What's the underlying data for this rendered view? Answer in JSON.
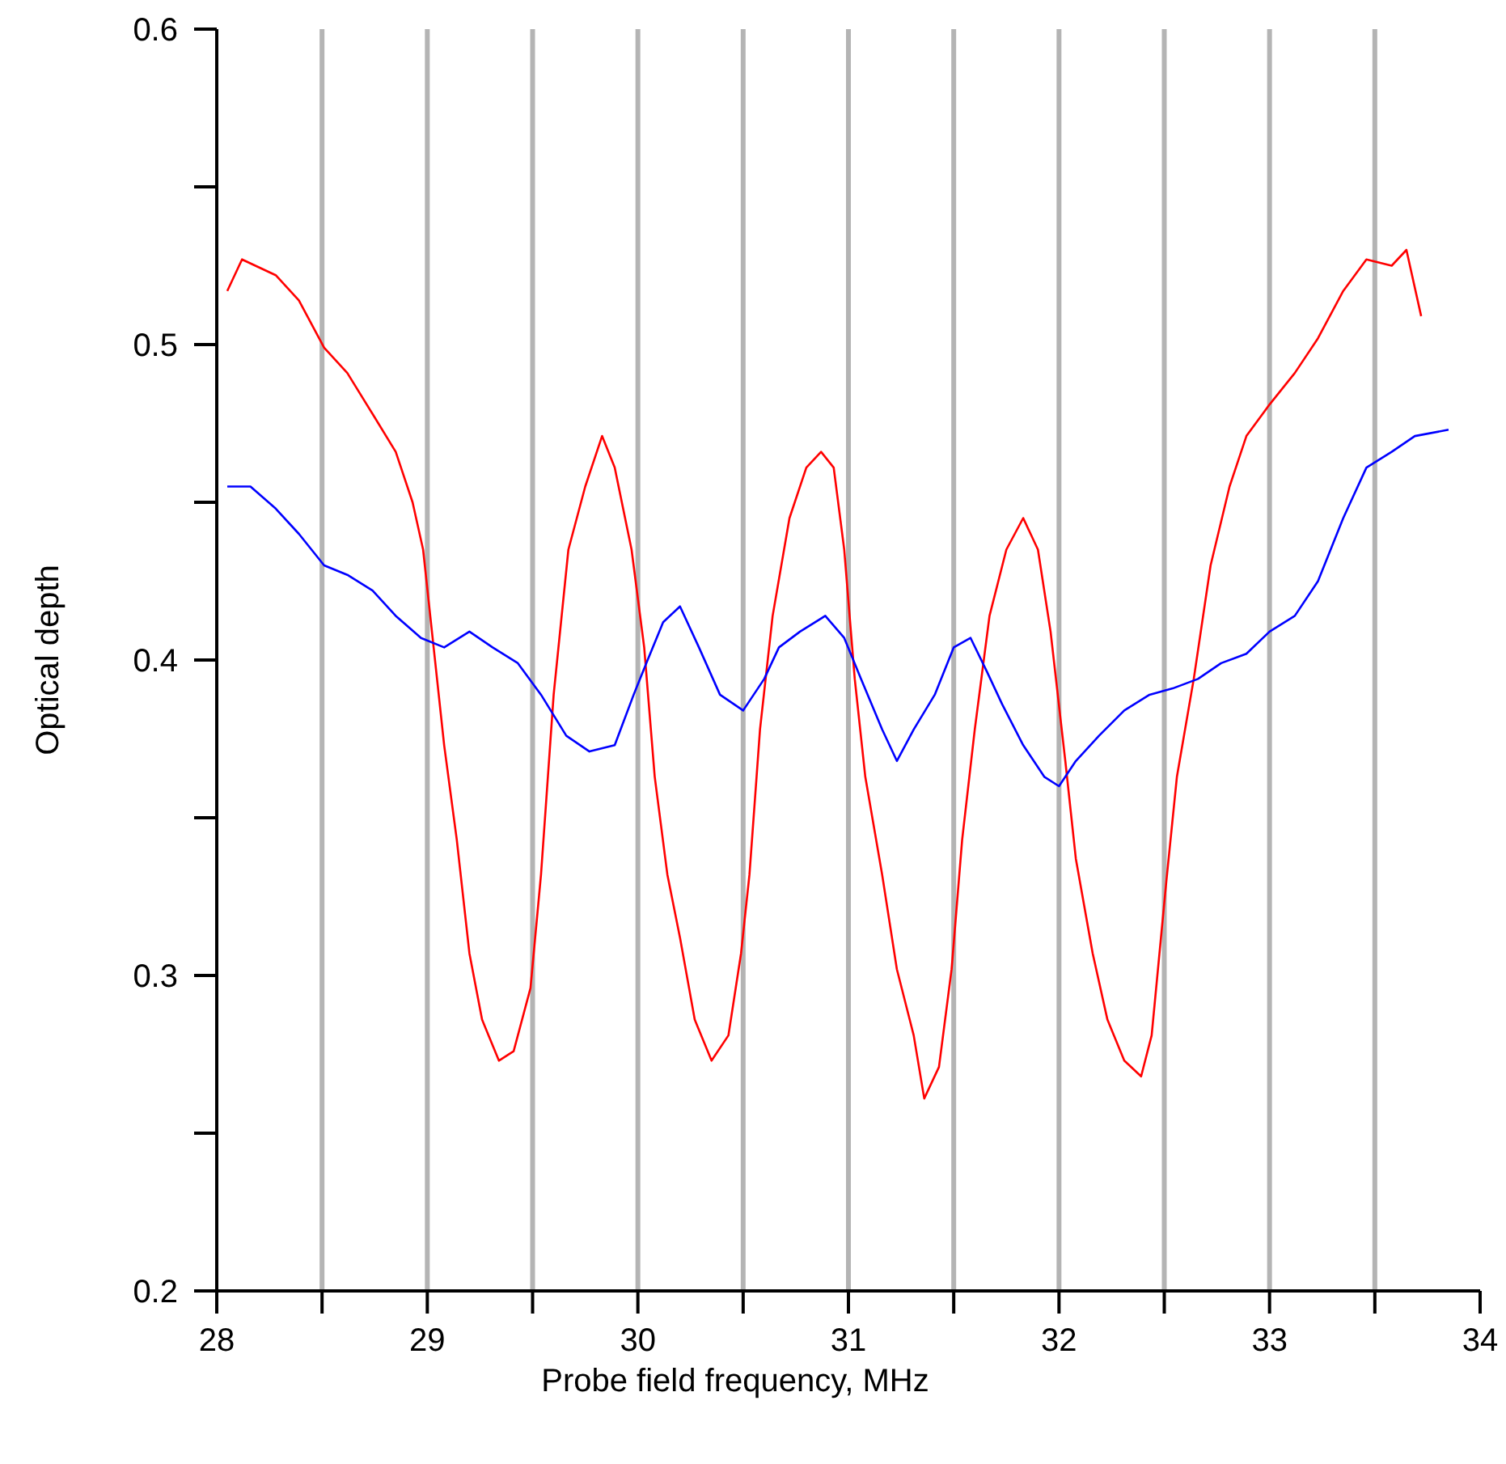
{
  "chart_data": {
    "type": "line",
    "xlabel": "Probe field frequency, MHz",
    "ylabel": "Optical depth",
    "xlim": [
      28,
      34
    ],
    "ylim": [
      0.2,
      0.6
    ],
    "xticks": [
      28,
      {
        "value": 28.5,
        "label": null
      },
      29,
      {
        "value": 29.5,
        "label": null
      },
      30,
      {
        "value": 30.5,
        "label": null
      },
      31,
      {
        "value": 31.5,
        "label": null
      },
      32,
      {
        "value": 32.5,
        "label": null
      },
      33,
      {
        "value": 33.5,
        "label": null
      },
      34
    ],
    "yticks": [
      0.2,
      {
        "value": 0.25,
        "label": null
      },
      0.3,
      {
        "value": 0.35,
        "label": null
      },
      0.4,
      {
        "value": 0.45,
        "label": null
      },
      0.5,
      {
        "value": 0.55,
        "label": null
      },
      0.6
    ],
    "grid": "x",
    "marker": "none",
    "line_style": "solid",
    "series": [
      {
        "color": "#ff0000",
        "x": [
          28.05,
          28.12,
          28.28,
          28.39,
          28.51,
          28.62,
          28.74,
          28.85,
          28.93,
          28.98,
          29.03,
          29.08,
          29.14,
          29.2,
          29.26,
          29.34,
          29.41,
          29.49,
          29.54,
          29.6,
          29.67,
          29.75,
          29.83,
          29.89,
          29.97,
          30.03,
          30.08,
          30.14,
          30.2,
          30.27,
          30.35,
          30.43,
          30.49,
          30.53,
          30.58,
          30.64,
          30.72,
          30.8,
          30.87,
          30.93,
          30.98,
          31.03,
          31.08,
          31.16,
          31.23,
          31.31,
          31.36,
          31.43,
          31.49,
          31.54,
          31.6,
          31.67,
          31.75,
          31.83,
          31.9,
          31.96,
          32.03,
          32.08,
          32.16,
          32.23,
          32.31,
          32.39,
          32.44,
          32.51,
          32.56,
          32.64,
          32.72,
          32.81,
          32.89,
          33.0,
          33.12,
          33.23,
          33.35,
          33.46,
          33.58,
          33.65,
          33.72
        ],
        "values": [
          0.517,
          0.527,
          0.522,
          0.514,
          0.499,
          0.491,
          0.478,
          0.466,
          0.45,
          0.435,
          0.404,
          0.373,
          0.343,
          0.307,
          0.286,
          0.273,
          0.276,
          0.296,
          0.332,
          0.389,
          0.435,
          0.455,
          0.471,
          0.461,
          0.435,
          0.404,
          0.363,
          0.332,
          0.312,
          0.286,
          0.273,
          0.281,
          0.307,
          0.332,
          0.378,
          0.414,
          0.445,
          0.461,
          0.466,
          0.461,
          0.435,
          0.394,
          0.363,
          0.332,
          0.302,
          0.281,
          0.261,
          0.271,
          0.302,
          0.343,
          0.378,
          0.414,
          0.435,
          0.445,
          0.435,
          0.409,
          0.368,
          0.337,
          0.307,
          0.286,
          0.273,
          0.268,
          0.281,
          0.33,
          0.363,
          0.394,
          0.43,
          0.455,
          0.471,
          0.481,
          0.491,
          0.502,
          0.517,
          0.527,
          0.525,
          0.53,
          0.509
        ]
      },
      {
        "color": "#0000ff",
        "x": [
          28.05,
          28.16,
          28.28,
          28.39,
          28.51,
          28.62,
          28.74,
          28.85,
          28.97,
          29.08,
          29.2,
          29.31,
          29.43,
          29.54,
          29.66,
          29.77,
          29.89,
          29.98,
          30.04,
          30.12,
          30.2,
          30.29,
          30.39,
          30.5,
          30.6,
          30.67,
          30.77,
          30.89,
          30.98,
          31.06,
          31.16,
          31.23,
          31.31,
          31.41,
          31.5,
          31.58,
          31.66,
          31.73,
          31.83,
          31.93,
          32.0,
          32.08,
          32.19,
          32.31,
          32.43,
          32.54,
          32.66,
          32.77,
          32.89,
          33.0,
          33.12,
          33.23,
          33.35,
          33.46,
          33.58,
          33.69,
          33.85
        ],
        "values": [
          0.455,
          0.455,
          0.448,
          0.44,
          0.43,
          0.427,
          0.422,
          0.414,
          0.407,
          0.404,
          0.409,
          0.404,
          0.399,
          0.389,
          0.376,
          0.371,
          0.373,
          0.389,
          0.399,
          0.412,
          0.417,
          0.404,
          0.389,
          0.384,
          0.394,
          0.404,
          0.409,
          0.414,
          0.407,
          0.394,
          0.378,
          0.368,
          0.378,
          0.389,
          0.404,
          0.407,
          0.396,
          0.386,
          0.373,
          0.363,
          0.36,
          0.368,
          0.376,
          0.384,
          0.389,
          0.391,
          0.394,
          0.399,
          0.402,
          0.409,
          0.414,
          0.425,
          0.445,
          0.461,
          0.466,
          0.471,
          0.473
        ]
      }
    ]
  }
}
